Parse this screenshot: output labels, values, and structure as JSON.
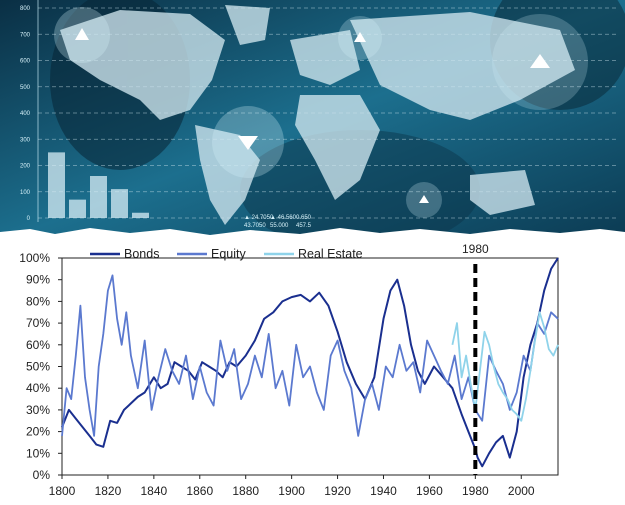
{
  "banner": {
    "y_ticks": [
      "0",
      "100",
      "200",
      "300",
      "400",
      "500",
      "600",
      "700",
      "800"
    ],
    "bar_values": [
      250,
      70,
      160,
      110,
      20
    ],
    "ticker_readout": [
      "▲ 24.7050",
      "▲ 46.560",
      "0.650",
      "43.7050",
      "55.000",
      "457.5"
    ],
    "colors": {
      "bg_dark": "#0a2f44",
      "bg_mid": "#1c6f8e",
      "map": "#cfe6ee"
    }
  },
  "chart_data": {
    "type": "line",
    "title": "",
    "xlabel": "",
    "ylabel": "",
    "xlim": [
      1800,
      2016
    ],
    "ylim": [
      0,
      100
    ],
    "x_ticks": [
      1800,
      1820,
      1840,
      1860,
      1880,
      1900,
      1920,
      1940,
      1960,
      1980,
      2000
    ],
    "y_ticks": [
      0,
      10,
      20,
      30,
      40,
      50,
      60,
      70,
      80,
      90,
      100
    ],
    "y_tick_format": "percent",
    "legend_position": "top-left",
    "grid": false,
    "annotation": {
      "x": 1980,
      "label": "1980",
      "style": "dashed"
    },
    "series": [
      {
        "name": "Bonds",
        "color": "#1a2f8f",
        "x": [
          1800,
          1803,
          1806,
          1809,
          1812,
          1815,
          1818,
          1821,
          1824,
          1827,
          1830,
          1833,
          1836,
          1840,
          1843,
          1846,
          1849,
          1852,
          1855,
          1858,
          1861,
          1864,
          1867,
          1870,
          1873,
          1876,
          1880,
          1884,
          1888,
          1892,
          1896,
          1900,
          1904,
          1908,
          1912,
          1916,
          1920,
          1924,
          1928,
          1932,
          1936,
          1940,
          1943,
          1946,
          1949,
          1952,
          1955,
          1958,
          1962,
          1966,
          1970,
          1974,
          1977,
          1980,
          1981,
          1983,
          1986,
          1989,
          1992,
          1995,
          1998,
          2001,
          2004,
          2007,
          2010,
          2013,
          2016
        ],
        "values": [
          22,
          30,
          26,
          22,
          18,
          14,
          13,
          25,
          24,
          30,
          33,
          36,
          38,
          45,
          40,
          42,
          52,
          50,
          48,
          44,
          52,
          50,
          48,
          45,
          52,
          50,
          55,
          62,
          72,
          75,
          80,
          82,
          83,
          80,
          84,
          78,
          66,
          52,
          42,
          35,
          45,
          72,
          85,
          90,
          78,
          60,
          48,
          42,
          50,
          45,
          40,
          28,
          20,
          12,
          8,
          4,
          10,
          15,
          18,
          8,
          20,
          45,
          60,
          70,
          85,
          95,
          100
        ]
      },
      {
        "name": "Equity",
        "color": "#5b79cf",
        "x": [
          1800,
          1802,
          1804,
          1806,
          1808,
          1810,
          1812,
          1814,
          1816,
          1818,
          1820,
          1822,
          1824,
          1826,
          1828,
          1830,
          1833,
          1836,
          1839,
          1842,
          1845,
          1848,
          1851,
          1854,
          1857,
          1860,
          1863,
          1866,
          1869,
          1872,
          1875,
          1878,
          1881,
          1884,
          1887,
          1890,
          1893,
          1896,
          1899,
          1902,
          1905,
          1908,
          1911,
          1914,
          1917,
          1920,
          1923,
          1926,
          1929,
          1932,
          1935,
          1938,
          1941,
          1944,
          1947,
          1950,
          1953,
          1956,
          1959,
          1962,
          1965,
          1968,
          1971,
          1974,
          1977,
          1980,
          1983,
          1986,
          1989,
          1992,
          1995,
          1998,
          2001,
          2004,
          2007,
          2010,
          2013,
          2016
        ],
        "values": [
          18,
          40,
          35,
          55,
          78,
          45,
          30,
          18,
          50,
          65,
          85,
          92,
          72,
          60,
          75,
          55,
          40,
          62,
          30,
          45,
          58,
          48,
          42,
          55,
          35,
          50,
          38,
          32,
          62,
          48,
          58,
          35,
          42,
          55,
          45,
          65,
          40,
          48,
          32,
          60,
          45,
          50,
          38,
          30,
          55,
          62,
          48,
          40,
          18,
          35,
          42,
          30,
          50,
          45,
          60,
          48,
          52,
          38,
          62,
          55,
          48,
          42,
          55,
          35,
          45,
          30,
          25,
          55,
          48,
          42,
          30,
          38,
          55,
          48,
          70,
          65,
          75,
          72
        ]
      },
      {
        "name": "Real Estate",
        "color": "#8fd3ea",
        "x": [
          1970,
          1972,
          1974,
          1976,
          1978,
          1980,
          1982,
          1984,
          1986,
          1988,
          1990,
          1992,
          1994,
          1996,
          1998,
          2000,
          2002,
          2004,
          2006,
          2008,
          2010,
          2012,
          2014,
          2016
        ],
        "values": [
          60,
          70,
          45,
          55,
          42,
          30,
          48,
          66,
          60,
          50,
          42,
          38,
          35,
          30,
          28,
          25,
          35,
          48,
          62,
          75,
          68,
          58,
          55,
          60
        ]
      }
    ]
  }
}
